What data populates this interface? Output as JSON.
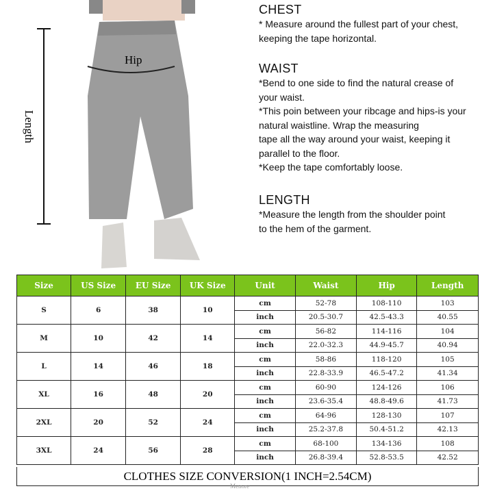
{
  "photo": {
    "hip_label": "Hip",
    "length_label": "Length"
  },
  "guide": [
    {
      "title": "CHEST",
      "lines": [
        "* Measure around the fullest part of your chest,",
        "keeping the tape horizontal."
      ]
    },
    {
      "title": "WAIST",
      "lines": [
        "*Bend to one side to find the natural crease of",
        "your waist.",
        "*This poin between your ribcage and hips-is your",
        "natural waistline. Wrap the measuring",
        "tape all the way around your waist, keeping it",
        "parallel to the floor.",
        "*Keep the tape comfortably loose."
      ]
    },
    {
      "title": "LENGTH",
      "lines": [
        "*Measure the length from the shoulder point",
        "to the hem of the garment."
      ]
    }
  ],
  "table": {
    "header_color": "#7bc31c",
    "headers": [
      "Size",
      "US Size",
      "EU Size",
      "UK Size",
      "Unit",
      "Waist",
      "Hip",
      "Length"
    ],
    "rows": [
      {
        "size": "S",
        "us": "6",
        "eu": "38",
        "uk": "10",
        "cm": [
          "52-78",
          "108-110",
          "103"
        ],
        "inch": [
          "20.5-30.7",
          "42.5-43.3",
          "40.55"
        ]
      },
      {
        "size": "M",
        "us": "10",
        "eu": "42",
        "uk": "14",
        "cm": [
          "56-82",
          "114-116",
          "104"
        ],
        "inch": [
          "22.0-32.3",
          "44.9-45.7",
          "40.94"
        ]
      },
      {
        "size": "L",
        "us": "14",
        "eu": "46",
        "uk": "18",
        "cm": [
          "58-86",
          "118-120",
          "105"
        ],
        "inch": [
          "22.8-33.9",
          "46.5-47.2",
          "41.34"
        ]
      },
      {
        "size": "XL",
        "us": "16",
        "eu": "48",
        "uk": "20",
        "cm": [
          "60-90",
          "124-126",
          "106"
        ],
        "inch": [
          "23.6-35.4",
          "48.8-49.6",
          "41.73"
        ]
      },
      {
        "size": "2XL",
        "us": "20",
        "eu": "52",
        "uk": "24",
        "cm": [
          "64-96",
          "128-130",
          "107"
        ],
        "inch": [
          "25.2-37.8",
          "50.4-51.2",
          "42.13"
        ]
      },
      {
        "size": "3XL",
        "us": "24",
        "eu": "56",
        "uk": "28",
        "cm": [
          "68-100",
          "134-136",
          "108"
        ],
        "inch": [
          "26.8-39.4",
          "52.8-53.5",
          "42.52"
        ]
      }
    ],
    "units": [
      "cm",
      "inch"
    ],
    "footer": "CLOTHES SIZE CONVERSION(1 INCH=2.54CM)"
  },
  "watermark": "Menore"
}
